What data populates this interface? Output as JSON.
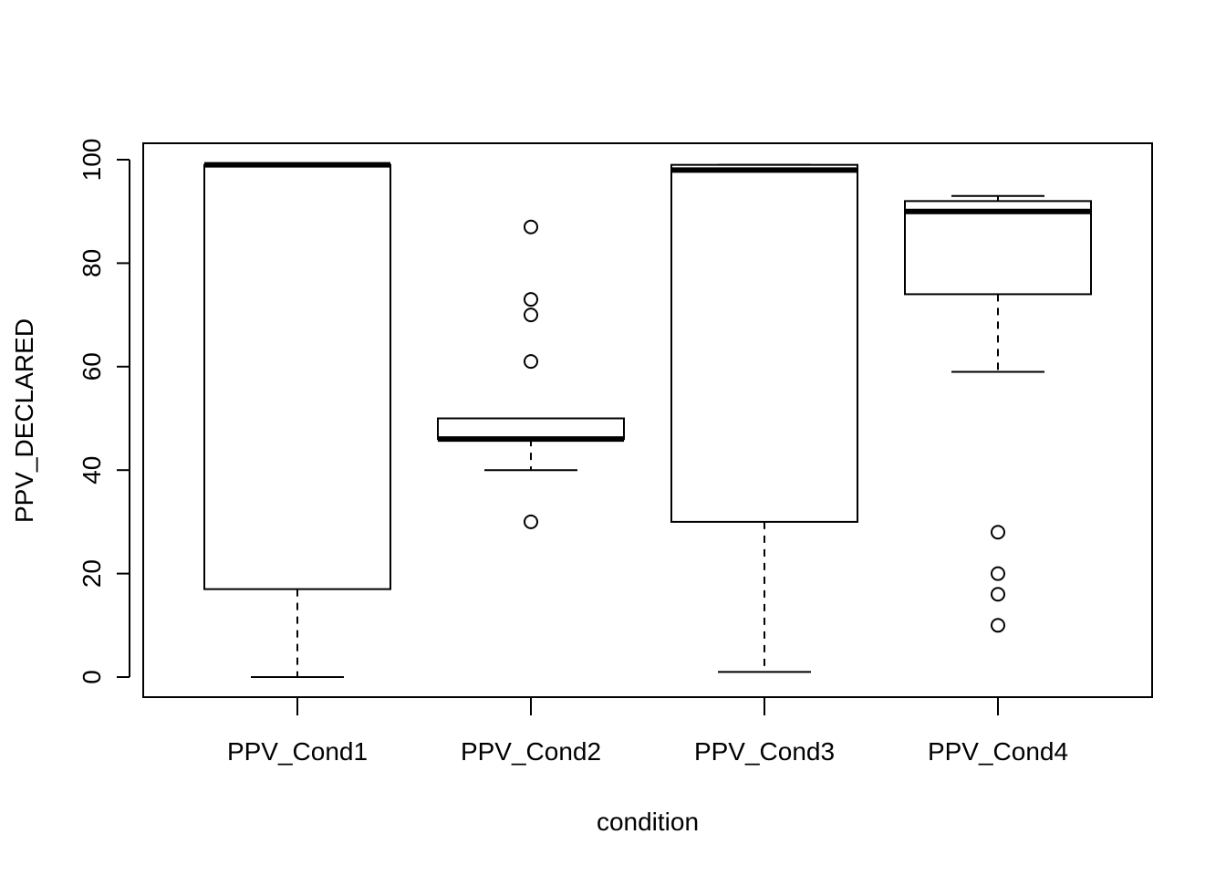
{
  "chart_data": {
    "type": "boxplot",
    "title": "",
    "xlabel": "condition",
    "ylabel": "PPV_DECLARED",
    "ylim": [
      -4,
      103
    ],
    "yticks": [
      0,
      20,
      40,
      60,
      80,
      100
    ],
    "categories": [
      "PPV_Cond1",
      "PPV_Cond2",
      "PPV_Cond3",
      "PPV_Cond4"
    ],
    "boxes": [
      {
        "category": "PPV_Cond1",
        "whisker_low": 0,
        "q1": 17,
        "median": 99,
        "q3": 99,
        "whisker_high": 99,
        "outliers": []
      },
      {
        "category": "PPV_Cond2",
        "whisker_low": 40,
        "q1": 46,
        "median": 46,
        "q3": 50,
        "whisker_high": 50,
        "outliers": [
          30,
          61,
          70,
          73,
          87
        ]
      },
      {
        "category": "PPV_Cond3",
        "whisker_low": 1,
        "q1": 30,
        "median": 98,
        "q3": 99,
        "whisker_high": 99,
        "outliers": []
      },
      {
        "category": "PPV_Cond4",
        "whisker_low": 59,
        "q1": 74,
        "median": 90,
        "q3": 92,
        "whisker_high": 93,
        "outliers": [
          10,
          16,
          20,
          28
        ]
      }
    ],
    "grid": false,
    "legend": "none"
  }
}
